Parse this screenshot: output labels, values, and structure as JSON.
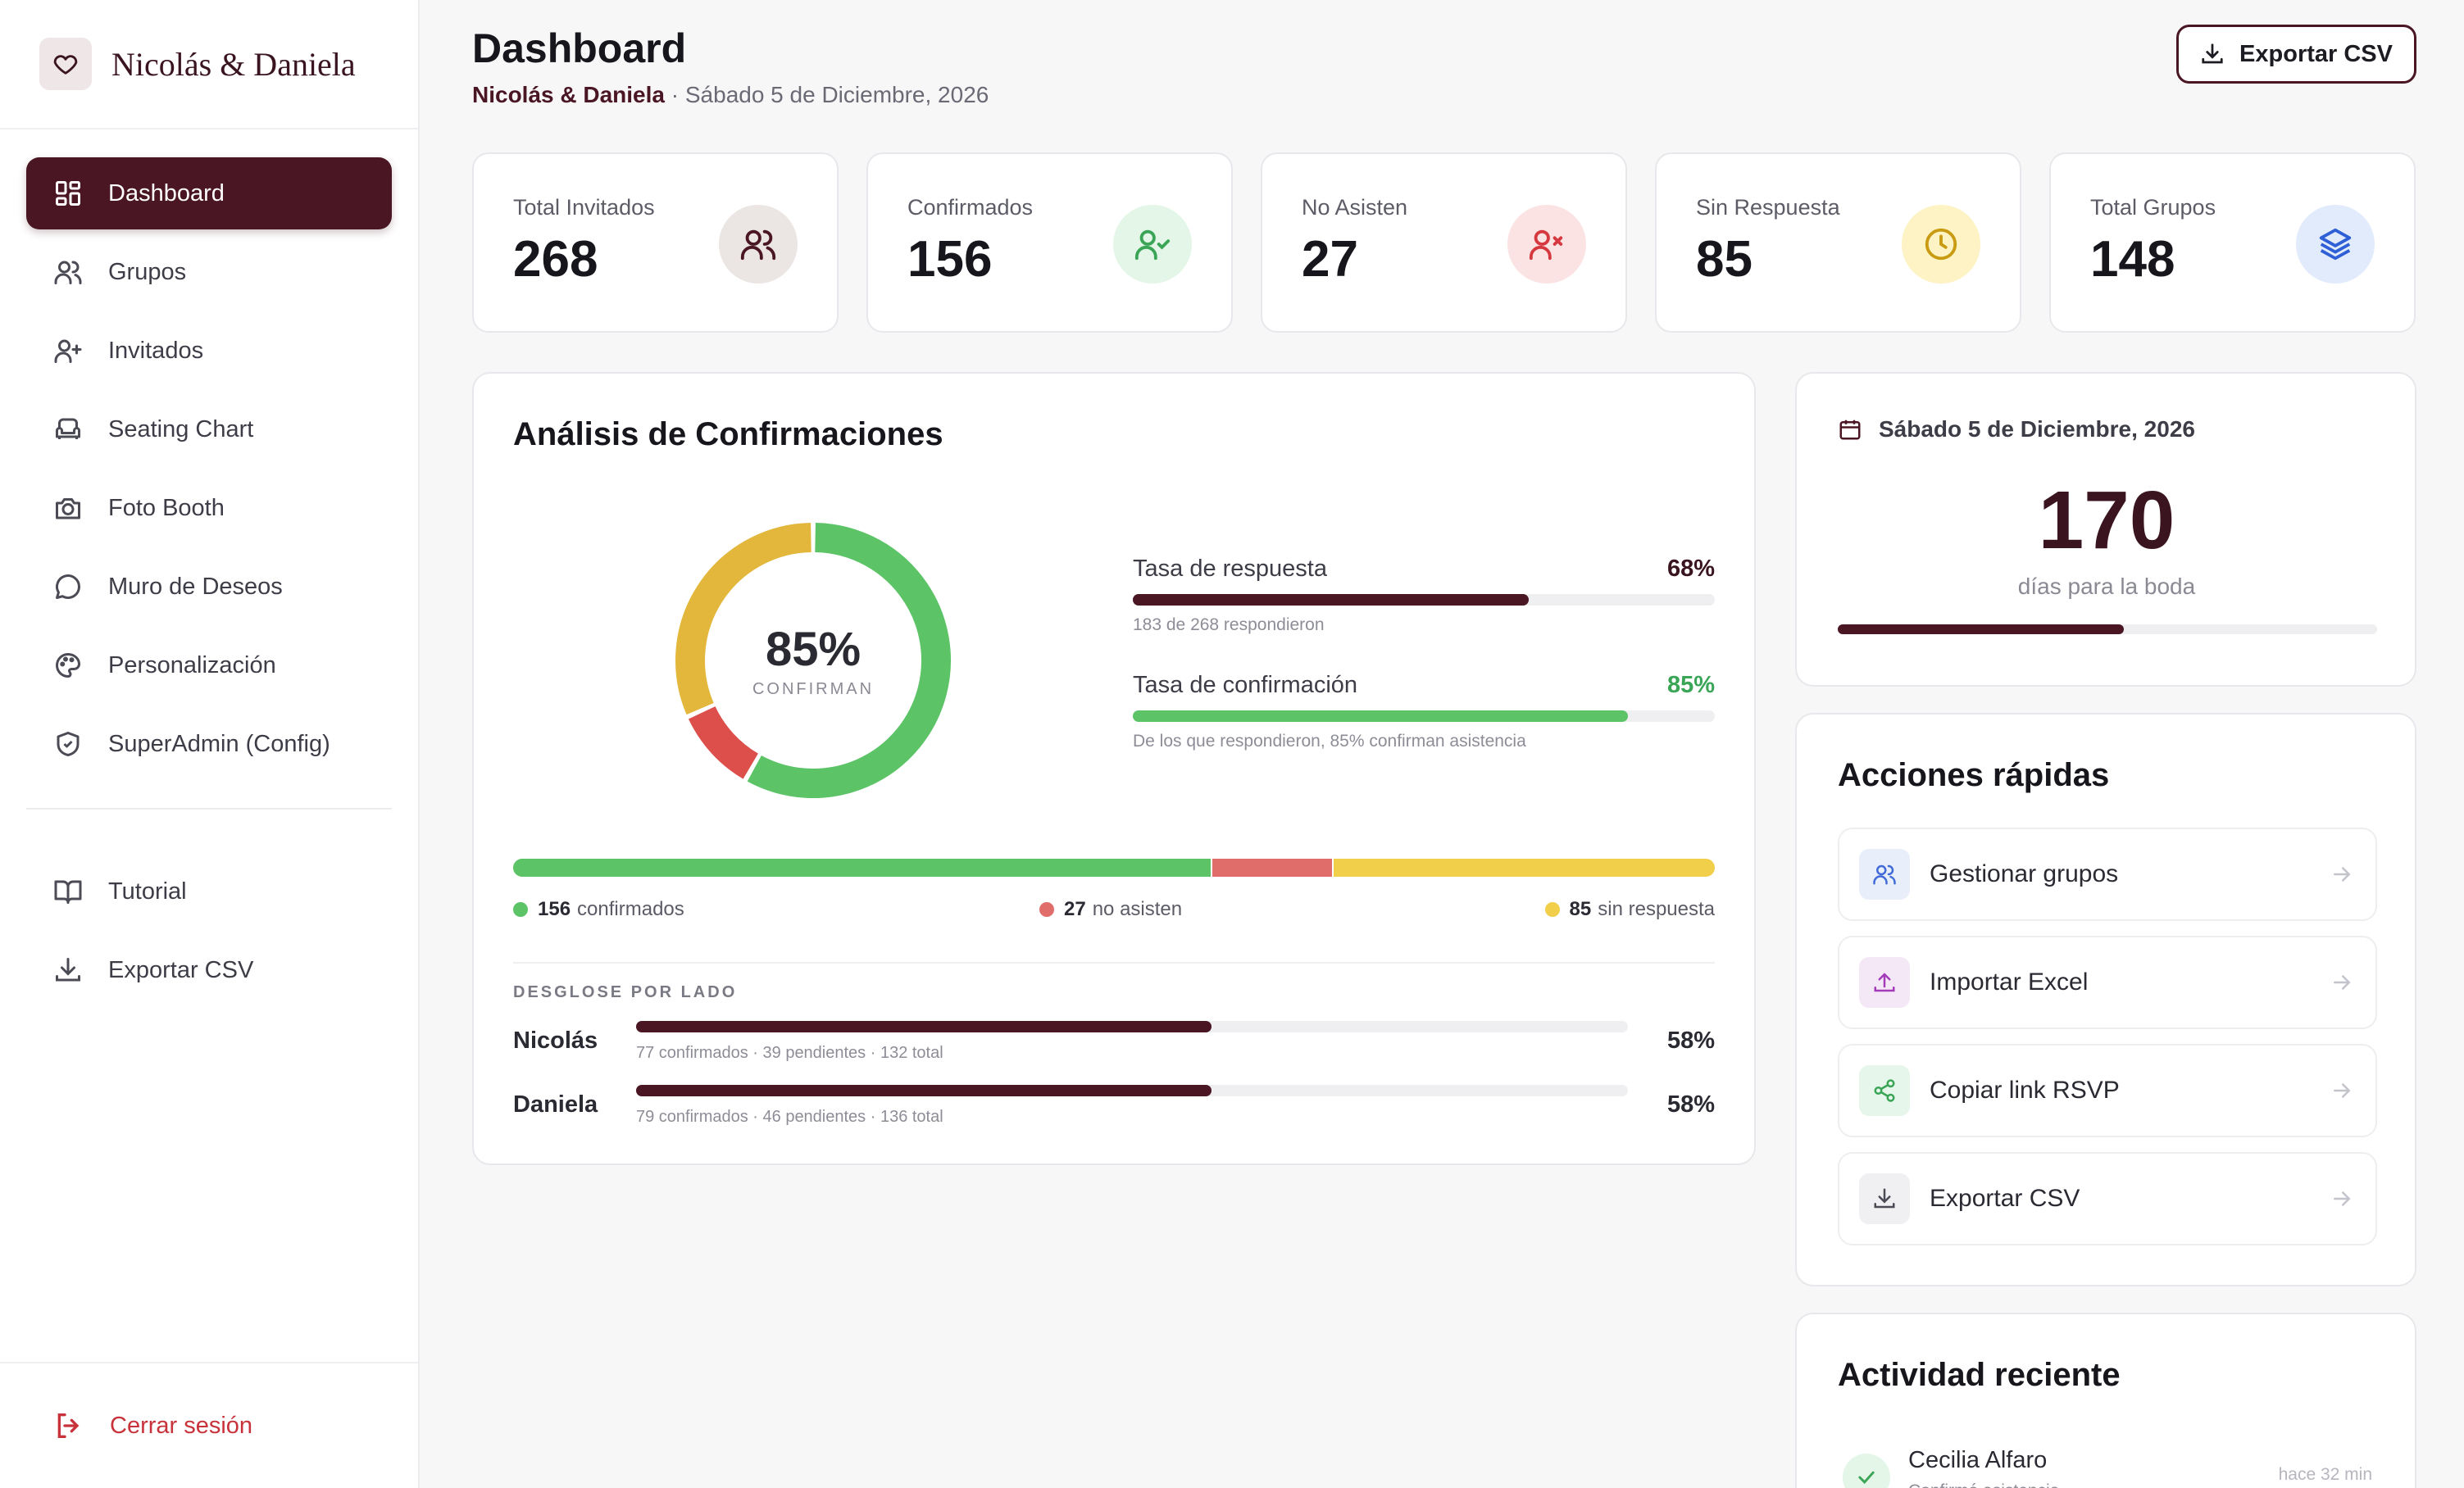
{
  "brand": {
    "name": "Nicolás & Daniela"
  },
  "nav": {
    "items": [
      {
        "label": "Dashboard"
      },
      {
        "label": "Grupos"
      },
      {
        "label": "Invitados"
      },
      {
        "label": "Seating Chart"
      },
      {
        "label": "Foto Booth"
      },
      {
        "label": "Muro de Deseos"
      },
      {
        "label": "Personalización"
      },
      {
        "label": "SuperAdmin (Config)"
      }
    ],
    "secondary": [
      {
        "label": "Tutorial"
      },
      {
        "label": "Exportar CSV"
      }
    ],
    "logout": "Cerrar sesión"
  },
  "header": {
    "title": "Dashboard",
    "couple": "Nicolás & Daniela",
    "date": " · Sábado 5 de Diciembre, 2026",
    "export_label": "Exportar CSV"
  },
  "stats": [
    {
      "label": "Total Invitados",
      "value": "268",
      "icon": "users-icon",
      "bg": "#ebe5e4",
      "color": "#4a1624"
    },
    {
      "label": "Confirmados",
      "value": "156",
      "icon": "user-check-icon",
      "bg": "#e3f6e7",
      "color": "#3aa556"
    },
    {
      "label": "No Asisten",
      "value": "27",
      "icon": "user-x-icon",
      "bg": "#fbe3e3",
      "color": "#d6383f"
    },
    {
      "label": "Sin Respuesta",
      "value": "85",
      "icon": "clock-icon",
      "bg": "#fdf3c4",
      "color": "#c99a12"
    },
    {
      "label": "Total Grupos",
      "value": "148",
      "icon": "layers-icon",
      "bg": "#e2ebfb",
      "color": "#2f5fd6"
    }
  ],
  "analysis": {
    "title": "Análisis de Confirmaciones",
    "donut": {
      "pct": "85%",
      "label": "CONFIRMAN",
      "confirmed": 156,
      "declined": 27,
      "pending": 85
    },
    "response_rate": {
      "label": "Tasa de respuesta",
      "value": "68%",
      "fraction": 0.68,
      "note": "183 de 268 respondieron"
    },
    "confirm_rate": {
      "label": "Tasa de confirmación",
      "value": "85%",
      "fraction": 0.85,
      "note": "De los que respondieron, 85% confirman asistencia"
    },
    "legend": {
      "confirmed_count": "156",
      "confirmed_text": "confirmados",
      "declined_count": "27",
      "declined_text": "no asisten",
      "pending_count": "85",
      "pending_text": "sin respuesta"
    },
    "breakdown_title": "DESGLOSE POR LADO",
    "sides": [
      {
        "name": "Nicolás",
        "note": "77 confirmados · 39 pendientes · 132 total",
        "pct": "58%",
        "fraction": 0.58
      },
      {
        "name": "Daniela",
        "note": "79 confirmados · 46 pendientes · 136 total",
        "pct": "58%",
        "fraction": 0.58
      }
    ],
    "colors": {
      "confirmed": "#5cc467",
      "declined": "#e06d6a",
      "pending": "#f2cf4b",
      "pending_donut": "#e2b73c",
      "declined_donut": "#dc4f4b"
    }
  },
  "countdown": {
    "date": "Sábado 5 de Diciembre, 2026",
    "days": "170",
    "label": "días para la boda",
    "progress": 0.53
  },
  "actions": {
    "title": "Acciones rápidas",
    "items": [
      {
        "label": "Gestionar grupos",
        "icon": "users-icon"
      },
      {
        "label": "Importar Excel",
        "icon": "upload-icon"
      },
      {
        "label": "Copiar link RSVP",
        "icon": "share-icon"
      },
      {
        "label": "Exportar CSV",
        "icon": "download-icon"
      }
    ]
  },
  "activity": {
    "title": "Actividad reciente",
    "items": [
      {
        "name": "Cecilia Alfaro",
        "desc": "Confirmó asistencia",
        "time": "hace 32 min"
      }
    ]
  },
  "theme": {
    "accent": "#4a1624"
  }
}
